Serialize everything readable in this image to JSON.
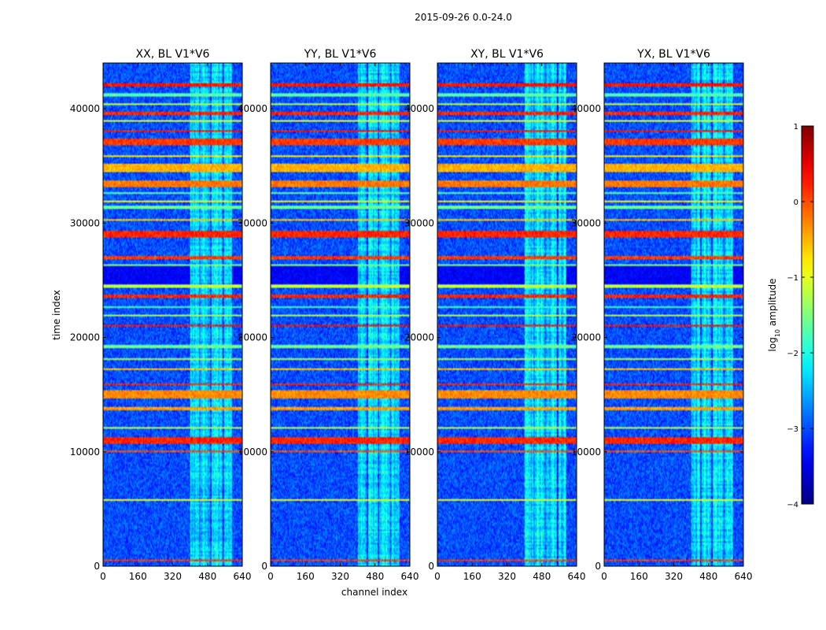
{
  "figure": {
    "suptitle": "2015-09-26 0.0-24.0"
  },
  "chart_data": {
    "type": "heatmap",
    "title": "2015-09-26 0.0-24.0",
    "xlabel": "channel index",
    "ylabel": "time index",
    "xlim": [
      0,
      640
    ],
    "ylim": [
      0,
      44000
    ],
    "xticks": [
      0,
      160,
      320,
      480,
      640
    ],
    "yticks": [
      0,
      10000,
      20000,
      30000,
      40000
    ],
    "panels": [
      {
        "title": "XX, BL V1*V6",
        "seed": 11
      },
      {
        "title": "YY, BL V1*V6",
        "seed": 23
      },
      {
        "title": "XY, BL V1*V6",
        "seed": 37
      },
      {
        "title": "YX, BL V1*V6",
        "seed": 53
      }
    ],
    "colorbar": {
      "label": "log10 amplitude",
      "label_main": "log",
      "label_sub": "10",
      "label_rest": " amplitude",
      "range": [
        -4,
        1
      ],
      "ticks": [
        -4,
        -3,
        -2,
        -1,
        0,
        1
      ],
      "tick_labels": [
        "−4",
        "−3",
        "−2",
        "−1",
        "0",
        "1"
      ],
      "colormap": "jet"
    },
    "background_level": -3.0,
    "band": {
      "channel_start": 400,
      "channel_end": 590,
      "level": -2.3
    },
    "band_gaps": [
      [
        440,
        448
      ],
      [
        492,
        500
      ],
      [
        548,
        556
      ]
    ],
    "flagged_blocks": [
      {
        "time_start": 10700,
        "time_end": 11300,
        "level": 0.2
      },
      {
        "time_start": 14700,
        "time_end": 15400,
        "level": -0.3
      },
      {
        "time_start": 26800,
        "time_end": 27200,
        "level": 0.1
      },
      {
        "time_start": 28800,
        "time_end": 29300,
        "level": 0.2
      },
      {
        "time_start": 33100,
        "time_end": 33700,
        "level": -0.2
      },
      {
        "time_start": 34400,
        "time_end": 35200,
        "level": -0.5
      },
      {
        "time_start": 36800,
        "time_end": 37400,
        "level": 0.1
      }
    ],
    "flagged_lines": [
      {
        "time": 500,
        "level": 0.1
      },
      {
        "time": 5800,
        "level": -1.0
      },
      {
        "time": 10000,
        "level": 0.0
      },
      {
        "time": 12100,
        "level": -1.2
      },
      {
        "time": 13800,
        "level": -0.4
      },
      {
        "time": 15900,
        "level": 0.2
      },
      {
        "time": 17200,
        "level": -0.6
      },
      {
        "time": 18100,
        "level": -1.3
      },
      {
        "time": 19200,
        "level": -1.6
      },
      {
        "time": 21000,
        "level": 0.3
      },
      {
        "time": 21900,
        "level": -1.3
      },
      {
        "time": 22700,
        "level": -1.8
      },
      {
        "time": 23600,
        "level": 0.2
      },
      {
        "time": 24500,
        "level": -1.2
      },
      {
        "time": 26300,
        "level": -1.5
      },
      {
        "time": 30300,
        "level": -0.6
      },
      {
        "time": 31400,
        "level": -1.6
      },
      {
        "time": 31900,
        "level": -0.8
      },
      {
        "time": 32600,
        "level": -1.7
      },
      {
        "time": 35900,
        "level": -0.8
      },
      {
        "time": 38100,
        "level": 0.3
      },
      {
        "time": 38900,
        "level": -1.0
      },
      {
        "time": 39600,
        "level": 0.2
      },
      {
        "time": 40400,
        "level": -1.2
      },
      {
        "time": 41200,
        "level": -1.7
      },
      {
        "time": 42100,
        "level": 0.3
      }
    ],
    "quiet_zone": {
      "time_start": 24700,
      "time_end": 26300,
      "level": -3.4
    }
  }
}
